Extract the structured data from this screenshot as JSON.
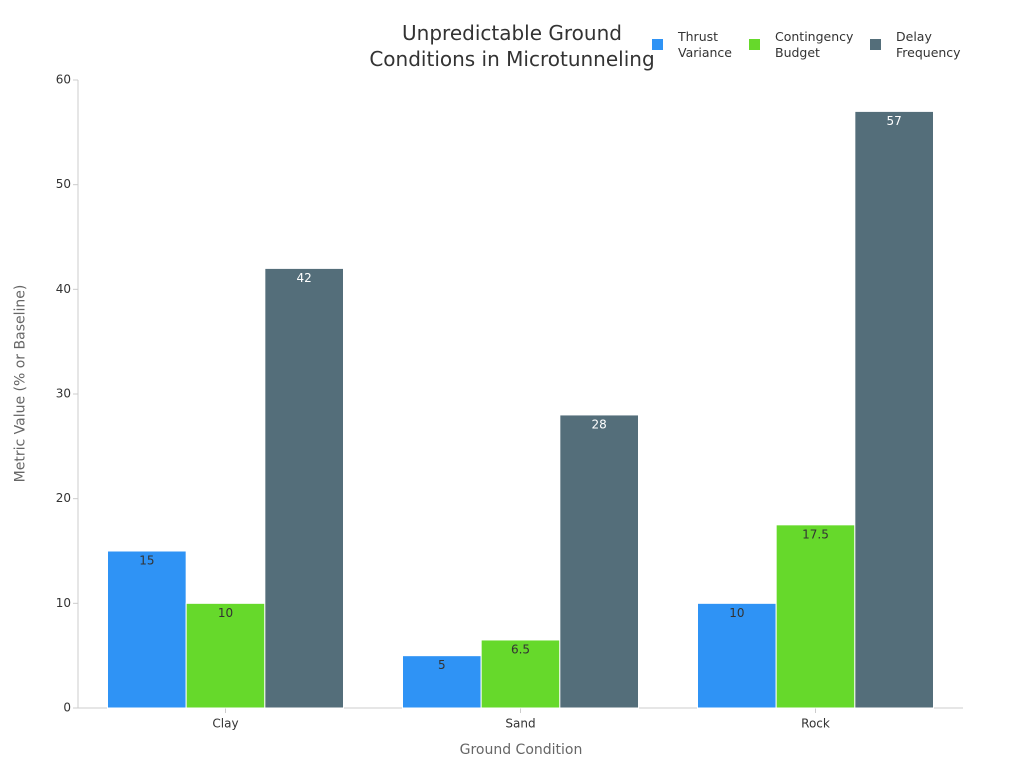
{
  "chart_data": {
    "type": "bar",
    "title": "Unpredictable Ground Conditions in Microtunneling",
    "x_label": "Ground Condition",
    "y_label": "Metric Value (% or Baseline)",
    "categories": [
      "Clay",
      "Sand",
      "Rock"
    ],
    "series": [
      {
        "name": "Thrust Variance",
        "color": "#2f93f5",
        "values": [
          15,
          5,
          10
        ]
      },
      {
        "name": "Contingency Budget",
        "color": "#66d92b",
        "values": [
          10,
          6.5,
          17.5
        ]
      },
      {
        "name": "Delay Frequency",
        "color": "#546e7a",
        "values": [
          42,
          28,
          57
        ]
      }
    ],
    "ylim": [
      0,
      60
    ],
    "yticks": [
      0,
      10,
      20,
      30,
      40,
      50,
      60
    ],
    "legend": "top-right",
    "grid": false
  }
}
